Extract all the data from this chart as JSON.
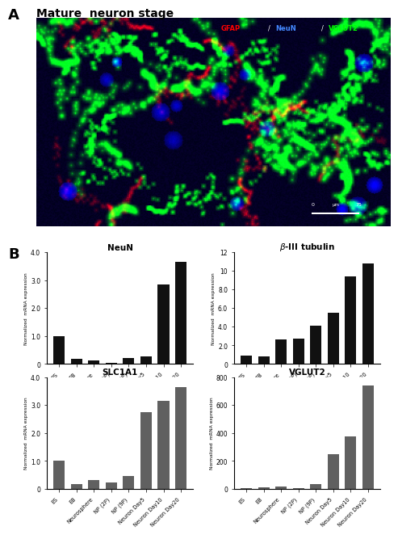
{
  "categories": [
    "ES",
    "EB",
    "Neurosphere",
    "NP (2P)",
    "NP (9P)",
    "Neuron Day5",
    "Neuron Day10",
    "Neuron Day20"
  ],
  "NeuN": [
    1.0,
    0.18,
    0.12,
    0.04,
    0.22,
    0.28,
    2.85,
    3.65
  ],
  "beta_III_tubulin": [
    0.9,
    0.85,
    2.65,
    2.7,
    4.1,
    5.5,
    9.4,
    10.8
  ],
  "SLC1A1": [
    1.0,
    0.18,
    0.32,
    0.22,
    0.45,
    2.75,
    3.15,
    3.65
  ],
  "VGLUT2": [
    5,
    10,
    20,
    5,
    35,
    250,
    375,
    740
  ],
  "NeuN_ylim": [
    0,
    4.0
  ],
  "beta_III_ylim": [
    0,
    12.0
  ],
  "SLC1A1_ylim": [
    0,
    4.0
  ],
  "VGLUT2_ylim": [
    0,
    800
  ],
  "NeuN_yticks": [
    0,
    1.0,
    2.0,
    3.0,
    4.0
  ],
  "beta_III_yticks": [
    0,
    2.0,
    4.0,
    6.0,
    8.0,
    10.0,
    12.0
  ],
  "SLC1A1_yticks": [
    0,
    1.0,
    2.0,
    3.0,
    4.0
  ],
  "VGLUT2_yticks": [
    0,
    200,
    400,
    600,
    800
  ],
  "black_color": "#111111",
  "gray_color": "#606060",
  "ylabel": "Normalized  mRNA expression",
  "panel_A_label": "A",
  "panel_B_label": "B",
  "title_mature": "Mature  neuron stage",
  "legend_GFAP": "GFAP",
  "legend_NeuN": "NeuN",
  "legend_VGLUT2": "VGLUT2",
  "image_bg_color": "#0a0a2e"
}
